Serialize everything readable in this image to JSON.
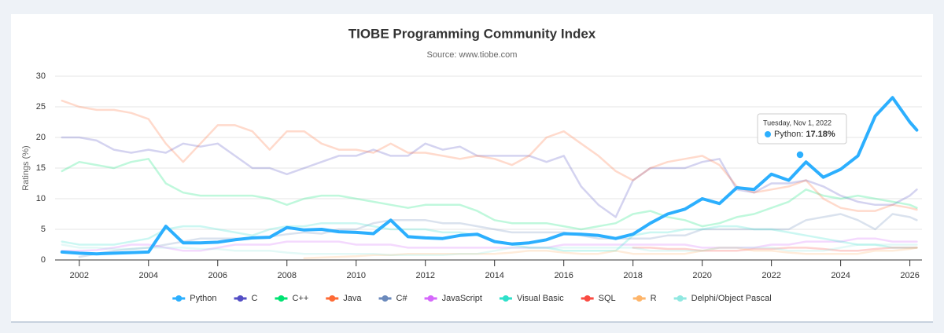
{
  "chart_data": {
    "type": "line",
    "title": "TIOBE Programming Community Index",
    "subtitle": "Source: www.tiobe.com",
    "y_label": "Ratings (%)",
    "x": [
      2001.5,
      2002,
      2002.5,
      2003,
      2003.5,
      2004,
      2004.5,
      2005,
      2005.5,
      2006,
      2006.5,
      2007,
      2007.5,
      2008,
      2008.5,
      2009,
      2009.5,
      2010,
      2010.5,
      2011,
      2011.5,
      2012,
      2012.5,
      2013,
      2013.5,
      2014,
      2014.5,
      2015,
      2015.5,
      2016,
      2016.5,
      2017,
      2017.5,
      2018,
      2018.5,
      2019,
      2019.5,
      2020,
      2020.5,
      2021,
      2021.5,
      2022,
      2022.5,
      2023,
      2023.5,
      2024,
      2024.5,
      2025,
      2025.5,
      2026,
      2026.2
    ],
    "xlim": [
      2001.3,
      2026.35
    ],
    "xticks": [
      2002,
      2004,
      2006,
      2008,
      2010,
      2012,
      2014,
      2016,
      2018,
      2020,
      2022,
      2024,
      2026
    ],
    "ylim": [
      0,
      30
    ],
    "yticks": [
      0,
      5,
      10,
      15,
      20,
      25,
      30
    ],
    "grid": true,
    "series": [
      {
        "name": "Python",
        "color": "#2caffe",
        "values": [
          1.3,
          1.1,
          1.0,
          1.1,
          1.2,
          1.3,
          5.5,
          2.8,
          2.8,
          2.9,
          3.3,
          3.6,
          3.7,
          5.3,
          4.9,
          5.0,
          4.6,
          4.5,
          4.3,
          6.5,
          3.8,
          3.6,
          3.5,
          4.0,
          4.2,
          3.0,
          2.6,
          2.8,
          3.3,
          4.3,
          4.2,
          4.0,
          3.5,
          4.2,
          6.0,
          7.5,
          8.3,
          10.0,
          9.2,
          11.8,
          11.5,
          14.0,
          13.0,
          16.0,
          13.5,
          14.8,
          17,
          23.5,
          26.5,
          22.5,
          21.2
        ]
      },
      {
        "name": "C",
        "color": "#544fc5",
        "values": [
          20,
          20,
          19.5,
          18,
          17.5,
          18,
          17.5,
          19,
          18.5,
          19,
          17,
          15,
          15,
          14,
          15,
          16,
          17,
          17,
          18,
          17,
          17,
          19,
          18,
          18.5,
          17,
          17,
          17,
          17,
          16,
          17,
          12,
          9,
          7,
          13,
          15,
          15,
          15,
          16,
          16.5,
          11.5,
          11,
          12.5,
          12.5,
          13,
          12,
          10.5,
          9.5,
          9,
          9,
          10.5,
          11.5
        ]
      },
      {
        "name": "C++",
        "color": "#00e272",
        "values": [
          14.5,
          16,
          15.5,
          15,
          16,
          16.5,
          12.5,
          11,
          10.5,
          10.5,
          10.5,
          10.5,
          10,
          9,
          10,
          10.5,
          10.5,
          10,
          9.5,
          9,
          8.5,
          9,
          9,
          9,
          8,
          6.5,
          6,
          6,
          6,
          5.5,
          5,
          5.5,
          6,
          7.5,
          8,
          7,
          6.5,
          5.5,
          6,
          7,
          7.5,
          8.5,
          9.5,
          11.5,
          10.5,
          10,
          10.5,
          10,
          9.5,
          9,
          8.5
        ]
      },
      {
        "name": "Java",
        "color": "#fe6a35",
        "values": [
          26,
          25,
          24.5,
          24.5,
          24,
          23,
          19,
          16,
          19,
          22,
          22,
          21,
          18,
          21,
          21,
          19,
          18,
          18,
          17.5,
          19,
          17.5,
          17.5,
          17,
          16.5,
          17,
          16.5,
          15.5,
          17,
          20,
          21,
          19,
          17,
          14.5,
          13,
          15,
          16,
          16.5,
          17,
          15.5,
          12,
          11,
          11.5,
          12,
          13,
          10,
          8.5,
          8,
          8,
          9,
          8.5,
          8.2
        ]
      },
      {
        "name": "C#",
        "color": "#6b8abc",
        "values": [
          null,
          0.5,
          1,
          1.5,
          1.8,
          2,
          2.5,
          3,
          3.5,
          3.5,
          3.5,
          3.5,
          3.8,
          4.2,
          4.5,
          4.3,
          5,
          5,
          6,
          6.5,
          6.5,
          6.5,
          6,
          6,
          5.5,
          5,
          4.5,
          4.5,
          4.5,
          4.5,
          4,
          3.5,
          3.5,
          3.5,
          3.5,
          4,
          4,
          5,
          5,
          5,
          5,
          5,
          5,
          6.5,
          7,
          7.5,
          6.5,
          5,
          7.5,
          7,
          6.5
        ]
      },
      {
        "name": "JavaScript",
        "color": "#d568fb",
        "values": [
          1.5,
          1.5,
          1.6,
          2,
          2.5,
          2.5,
          2,
          1.5,
          1.5,
          2,
          2.5,
          2.5,
          2.5,
          3,
          3,
          3,
          3,
          2.5,
          2.5,
          2.5,
          2,
          2,
          2,
          2,
          2,
          2,
          2,
          2,
          2,
          2.5,
          2.5,
          2.5,
          2.5,
          2.5,
          2.5,
          2.5,
          2.5,
          2,
          2,
          2,
          2,
          2.5,
          2.5,
          3,
          3,
          3,
          3.5,
          3.5,
          3,
          3,
          3
        ]
      },
      {
        "name": "Visual Basic",
        "color": "#2ee0ca",
        "values": [
          3,
          2.5,
          2.5,
          2.5,
          3,
          3.5,
          5,
          5.5,
          5.5,
          5,
          4.5,
          4,
          5,
          5.5,
          5.5,
          6,
          6,
          6,
          5.5,
          5,
          5,
          5,
          4.5,
          4.5,
          4,
          3,
          2.5,
          2,
          2,
          1.5,
          1.5,
          1.5,
          1.5,
          4,
          4.5,
          4.5,
          5,
          5,
          5.5,
          5.5,
          5,
          5,
          4.5,
          4,
          3.5,
          3,
          2.5,
          2.5,
          2,
          2,
          2
        ]
      },
      {
        "name": "SQL",
        "color": "#fa4b42",
        "values": [
          null,
          null,
          null,
          null,
          null,
          null,
          null,
          null,
          null,
          null,
          null,
          null,
          null,
          null,
          null,
          null,
          null,
          null,
          null,
          null,
          null,
          null,
          null,
          null,
          null,
          null,
          null,
          null,
          null,
          null,
          null,
          null,
          null,
          2,
          2,
          1.8,
          1.8,
          1.5,
          1.5,
          1.5,
          1.8,
          1.8,
          2,
          2,
          1.8,
          1.5,
          1.5,
          1.8,
          2,
          2,
          2
        ]
      },
      {
        "name": "R",
        "color": "#feb56a",
        "values": [
          null,
          null,
          null,
          null,
          null,
          null,
          null,
          null,
          null,
          null,
          null,
          null,
          null,
          null,
          0.3,
          0.4,
          0.5,
          0.6,
          0.8,
          0.8,
          1,
          1,
          1,
          1,
          1,
          1,
          1.2,
          1.5,
          1.5,
          1.2,
          1,
          1,
          1.5,
          1,
          1,
          1,
          1,
          1.5,
          2,
          2,
          1.5,
          1.5,
          1.2,
          1,
          1,
          1,
          1,
          1.5,
          1.5,
          1.8,
          2
        ]
      },
      {
        "name": "Delphi/Object Pascal",
        "color": "#91e8e1",
        "values": [
          2.5,
          2,
          2,
          1.8,
          1.8,
          2,
          2,
          2,
          1.8,
          1.8,
          1.5,
          1.5,
          1.5,
          1.2,
          1,
          1,
          1,
          1,
          1,
          0.8,
          0.8,
          0.8,
          0.8,
          1,
          1,
          1.5,
          2,
          2,
          2,
          2,
          2,
          2,
          2,
          2,
          1.5,
          1.5,
          1.5,
          1.5,
          2,
          2,
          2,
          2,
          1.5,
          1.5,
          1.5,
          2,
          2.5,
          2.5,
          2.5,
          2.5,
          2.5
        ]
      }
    ],
    "tooltip": {
      "date": "Tuesday, Nov 1, 2022",
      "label": "Python:",
      "value": 17.18,
      "value_label": "17.18%"
    }
  }
}
